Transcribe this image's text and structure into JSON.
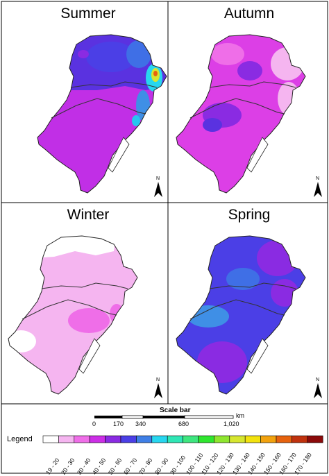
{
  "panels": [
    {
      "key": "summer",
      "title": "Summer"
    },
    {
      "key": "autumn",
      "title": "Autumn"
    },
    {
      "key": "winter",
      "title": "Winter"
    },
    {
      "key": "spring",
      "title": "Spring"
    }
  ],
  "north_label": "N",
  "scale_bar": {
    "title": "Scale bar",
    "unit": "km",
    "ticks": [
      "0",
      "170",
      "340",
      "680",
      "1,020"
    ]
  },
  "legend": {
    "title": "Legend",
    "classes": [
      {
        "label": "19 - 20",
        "color": "#ffffff"
      },
      {
        "label": "20 - 30",
        "color": "#f5b5f0"
      },
      {
        "label": "30 - 40",
        "color": "#ef6ee8"
      },
      {
        "label": "40 - 50",
        "color": "#cc2ee6"
      },
      {
        "label": "50 - 60",
        "color": "#8a2be2"
      },
      {
        "label": "60 - 70",
        "color": "#4b3fe6"
      },
      {
        "label": "70 - 80",
        "color": "#3f7fe6"
      },
      {
        "label": "80 - 90",
        "color": "#27d6ef"
      },
      {
        "label": "90 - 100",
        "color": "#2fe6b5"
      },
      {
        "label": "100 - 110",
        "color": "#3ee67f"
      },
      {
        "label": "110 - 120",
        "color": "#2fe62f"
      },
      {
        "label": "120 - 130",
        "color": "#8fe62f"
      },
      {
        "label": "130 - 140",
        "color": "#d6e62f"
      },
      {
        "label": "140 - 150",
        "color": "#f2e20e"
      },
      {
        "label": "150 - 160",
        "color": "#f2a20e"
      },
      {
        "label": "160 - 170",
        "color": "#e6620e"
      },
      {
        "label": "170 - 180",
        "color": "#c0320e"
      },
      {
        "label": "",
        "color": "#8b0a0a"
      }
    ]
  }
}
